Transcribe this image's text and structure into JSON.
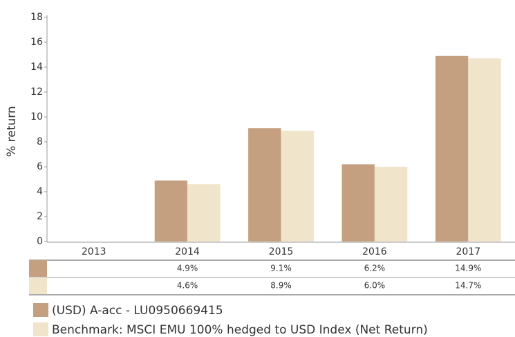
{
  "chart_data": {
    "type": "bar",
    "y_label": "% return",
    "categories": [
      "2013",
      "2014",
      "2015",
      "2016",
      "2017"
    ],
    "series": [
      {
        "name": "(USD) A-acc - LU0950669415",
        "color": "#c4a080",
        "values": [
          null,
          4.9,
          9.1,
          6.2,
          14.9
        ],
        "value_labels": [
          null,
          "4.9%",
          "9.1%",
          "6.2%",
          "14.9%"
        ]
      },
      {
        "name": "Benchmark: MSCI EMU 100% hedged to USD Index (Net Return)",
        "color": "#f0e4ca",
        "values": [
          null,
          4.6,
          8.9,
          6.0,
          14.7
        ],
        "value_labels": [
          null,
          "4.6%",
          "8.9%",
          "6.0%",
          "14.7%"
        ]
      }
    ],
    "ylim": [
      0,
      18
    ],
    "yticks": [
      0,
      2,
      4,
      6,
      8,
      10,
      12,
      14,
      16,
      18
    ]
  }
}
